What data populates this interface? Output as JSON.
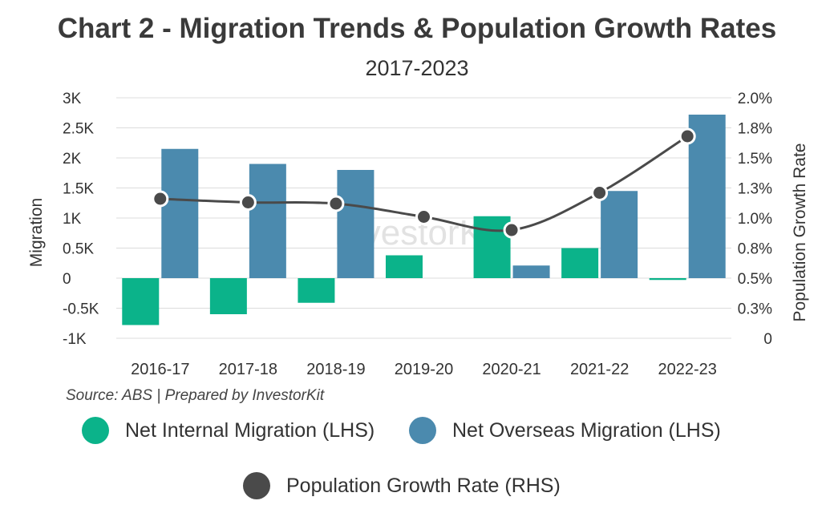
{
  "chart_data": {
    "type": "bar+line",
    "title": "Chart 2 - Migration Trends & Population Growth Rates",
    "subtitle": "2017-2023",
    "categories": [
      "2016-17",
      "2017-18",
      "2018-19",
      "2019-20",
      "2020-21",
      "2021-22",
      "2022-23"
    ],
    "series": [
      {
        "name": "Net Internal Migration (LHS)",
        "axis": "left",
        "kind": "bar",
        "color": "#0bb38a",
        "values": [
          -780,
          -600,
          -410,
          380,
          1030,
          500,
          -30
        ]
      },
      {
        "name": "Net Overseas Migration (LHS)",
        "axis": "left",
        "kind": "bar",
        "color": "#4b8aae",
        "values": [
          2150,
          1900,
          1800,
          0,
          210,
          1450,
          2720
        ]
      },
      {
        "name": "Population Growth Rate (RHS)",
        "axis": "right",
        "kind": "line",
        "color": "#4a4a4a",
        "values": [
          1.16,
          1.13,
          1.12,
          1.01,
          0.9,
          1.21,
          1.68
        ]
      }
    ],
    "ylabel_left": "Migration",
    "ylabel_right": "Population Growth Rate",
    "ylim_left": [
      -1000,
      3000
    ],
    "ylim_right": [
      0,
      2.0
    ],
    "left_ticks": [
      {
        "value": 3000,
        "label": "3K"
      },
      {
        "value": 2500,
        "label": "2.5K"
      },
      {
        "value": 2000,
        "label": "2K"
      },
      {
        "value": 1500,
        "label": "1.5K"
      },
      {
        "value": 1000,
        "label": "1K"
      },
      {
        "value": 500,
        "label": "0.5K"
      },
      {
        "value": 0,
        "label": "0"
      },
      {
        "value": -500,
        "label": "-0.5K"
      },
      {
        "value": -1000,
        "label": "-1K"
      }
    ],
    "right_ticks": [
      "2.0%",
      "1.8%",
      "1.5%",
      "1.3%",
      "1.0%",
      "0.8%",
      "0.5%",
      "0.3%",
      "0"
    ],
    "grid": true,
    "watermark": "InvestorKit",
    "source": "Source: ABS | Prepared by InvestorKit"
  }
}
